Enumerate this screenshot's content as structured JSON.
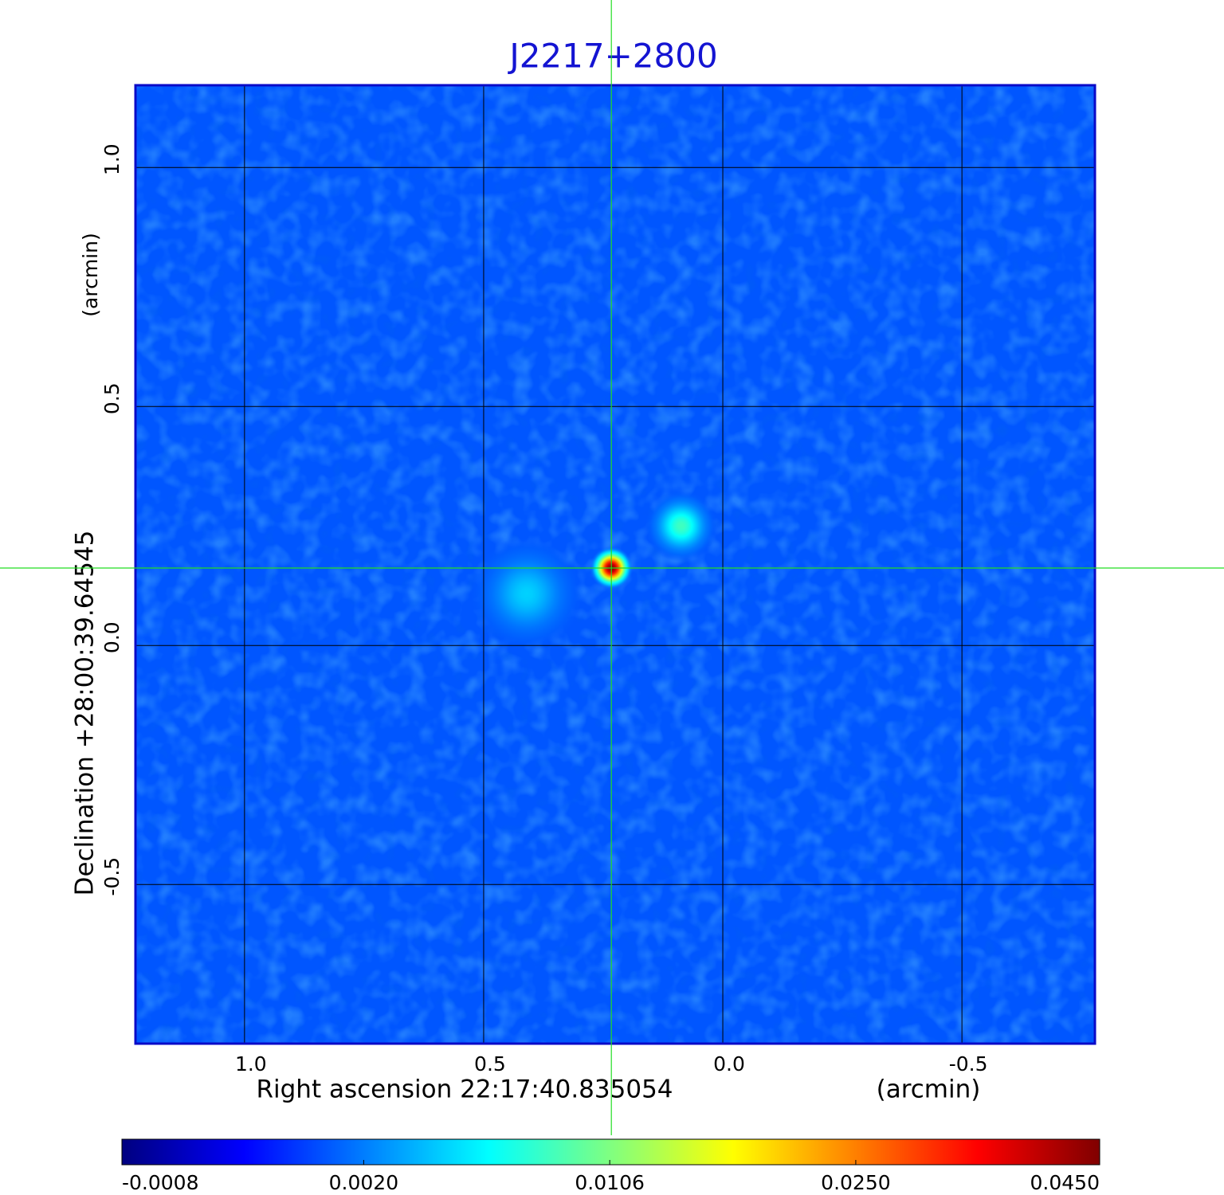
{
  "chart_data": {
    "type": "image",
    "title": "J2217+2800",
    "xlabel": "Right ascension  22:17:40.835054",
    "xunit": "(arcmin)",
    "ylabel": "Declination  +28:00:39.64545",
    "yunit": "(arcmin)",
    "xlim": [
      1.228,
      -0.778
    ],
    "ylim": [
      -0.833,
      1.172
    ],
    "xticks": [
      {
        "value": 1,
        "label": "1.0"
      },
      0.5,
      {
        "value": 0,
        "label": "0.0"
      },
      -0.5
    ],
    "yticks": [
      -0.5,
      {
        "value": 0,
        "label": "0.0"
      },
      0.5,
      {
        "value": 1,
        "label": "1.0"
      }
    ],
    "grid": true,
    "grid_color": "#000000",
    "crosshair": {
      "x": 0.233,
      "y": 0.162,
      "color": "#22dd22"
    },
    "colormap": "jet",
    "color_scale": "sqrt",
    "clim": [
      -0.0008,
      0.045
    ],
    "colorbar_ticks": [
      -0.0008,
      {
        "value": 0.002,
        "label": "0.0020"
      },
      0.0106,
      {
        "value": 0.025,
        "label": "0.0250"
      },
      {
        "value": 0.045,
        "label": "0.0450"
      }
    ],
    "background": 0.0012,
    "sources": [
      {
        "x": 0.233,
        "y": 0.162,
        "peak": 0.045,
        "radius": 0.045
      },
      {
        "x": 0.087,
        "y": 0.25,
        "peak": 0.008,
        "radius": 0.075
      },
      {
        "x": 0.41,
        "y": 0.108,
        "peak": 0.0042,
        "radius": 0.12
      }
    ]
  }
}
